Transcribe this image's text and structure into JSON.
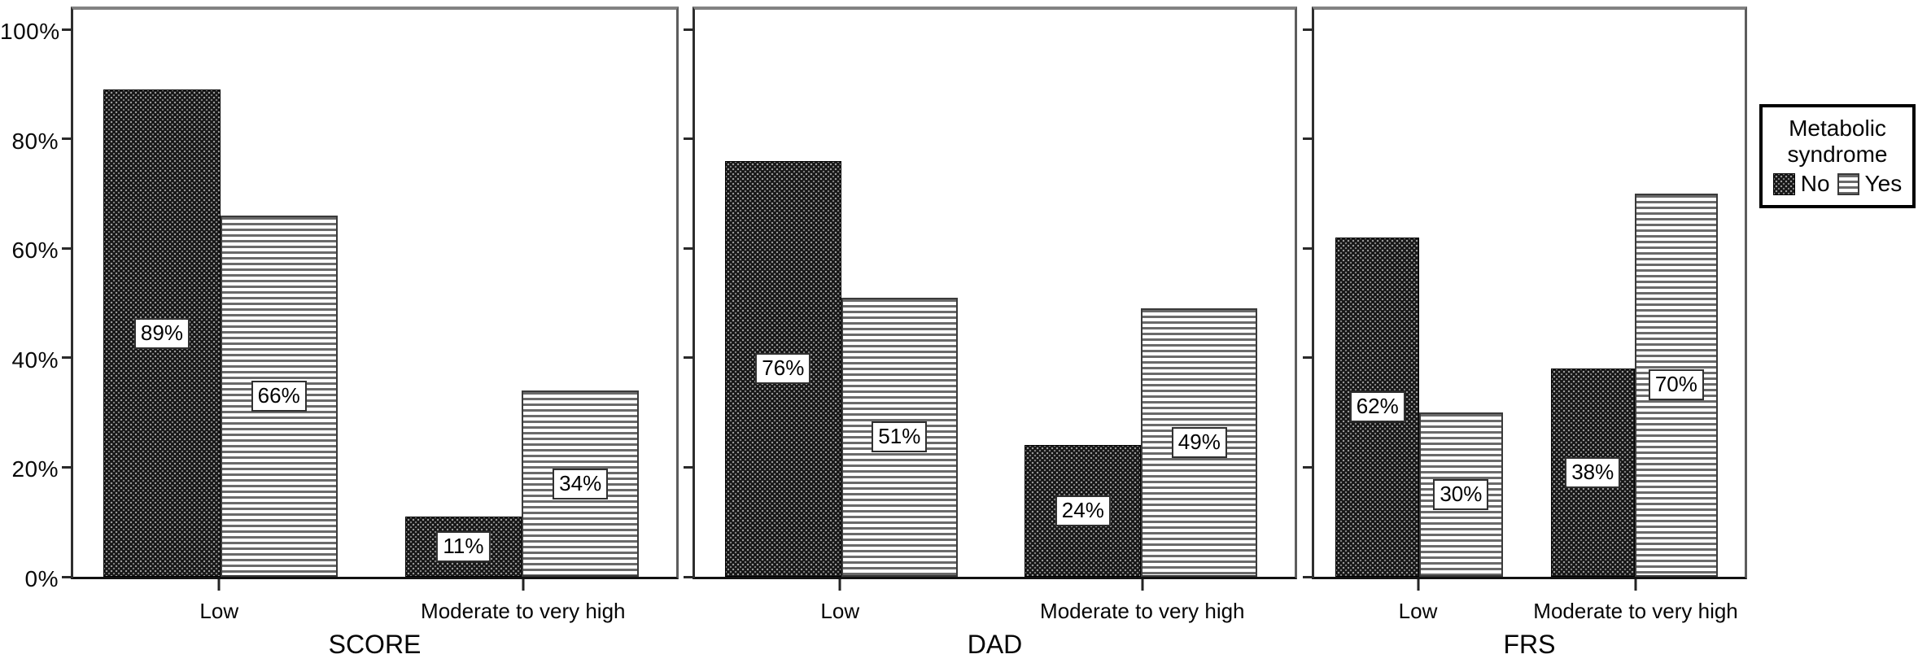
{
  "chart_data": {
    "type": "bar",
    "layout": "three-panel clustered bar chart, no gridlines",
    "y_axis": {
      "labels": [
        "0%",
        "20%",
        "40%",
        "60%",
        "80%",
        "100%"
      ],
      "ylim": [
        0,
        100
      ],
      "grid": false
    },
    "legend": {
      "title": "Metabolic syndrome",
      "position": "right",
      "items": [
        {
          "label": "No",
          "pattern": "black-dotted"
        },
        {
          "label": "Yes",
          "pattern": "gray-horizontal-stripes"
        }
      ]
    },
    "panels": [
      {
        "title": "SCORE",
        "categories": [
          "Low",
          "Moderate to very high"
        ],
        "series": [
          {
            "name": "No",
            "values": [
              89,
              11
            ],
            "labels": [
              "89%",
              "11%"
            ]
          },
          {
            "name": "Yes",
            "values": [
              66,
              34
            ],
            "labels": [
              "66%",
              "34%"
            ]
          }
        ]
      },
      {
        "title": "DAD",
        "categories": [
          "Low",
          "Moderate to very high"
        ],
        "series": [
          {
            "name": "No",
            "values": [
              76,
              24
            ],
            "labels": [
              "76%",
              "24%"
            ]
          },
          {
            "name": "Yes",
            "values": [
              51,
              49
            ],
            "labels": [
              "51%",
              "49%"
            ]
          }
        ]
      },
      {
        "title": "FRS",
        "categories": [
          "Low",
          "Moderate to very high"
        ],
        "series": [
          {
            "name": "No",
            "values": [
              62,
              38
            ],
            "labels": [
              "62%",
              "38%"
            ]
          },
          {
            "name": "Yes",
            "values": [
              30,
              70
            ],
            "labels": [
              "30%",
              "70%"
            ]
          }
        ]
      }
    ]
  }
}
